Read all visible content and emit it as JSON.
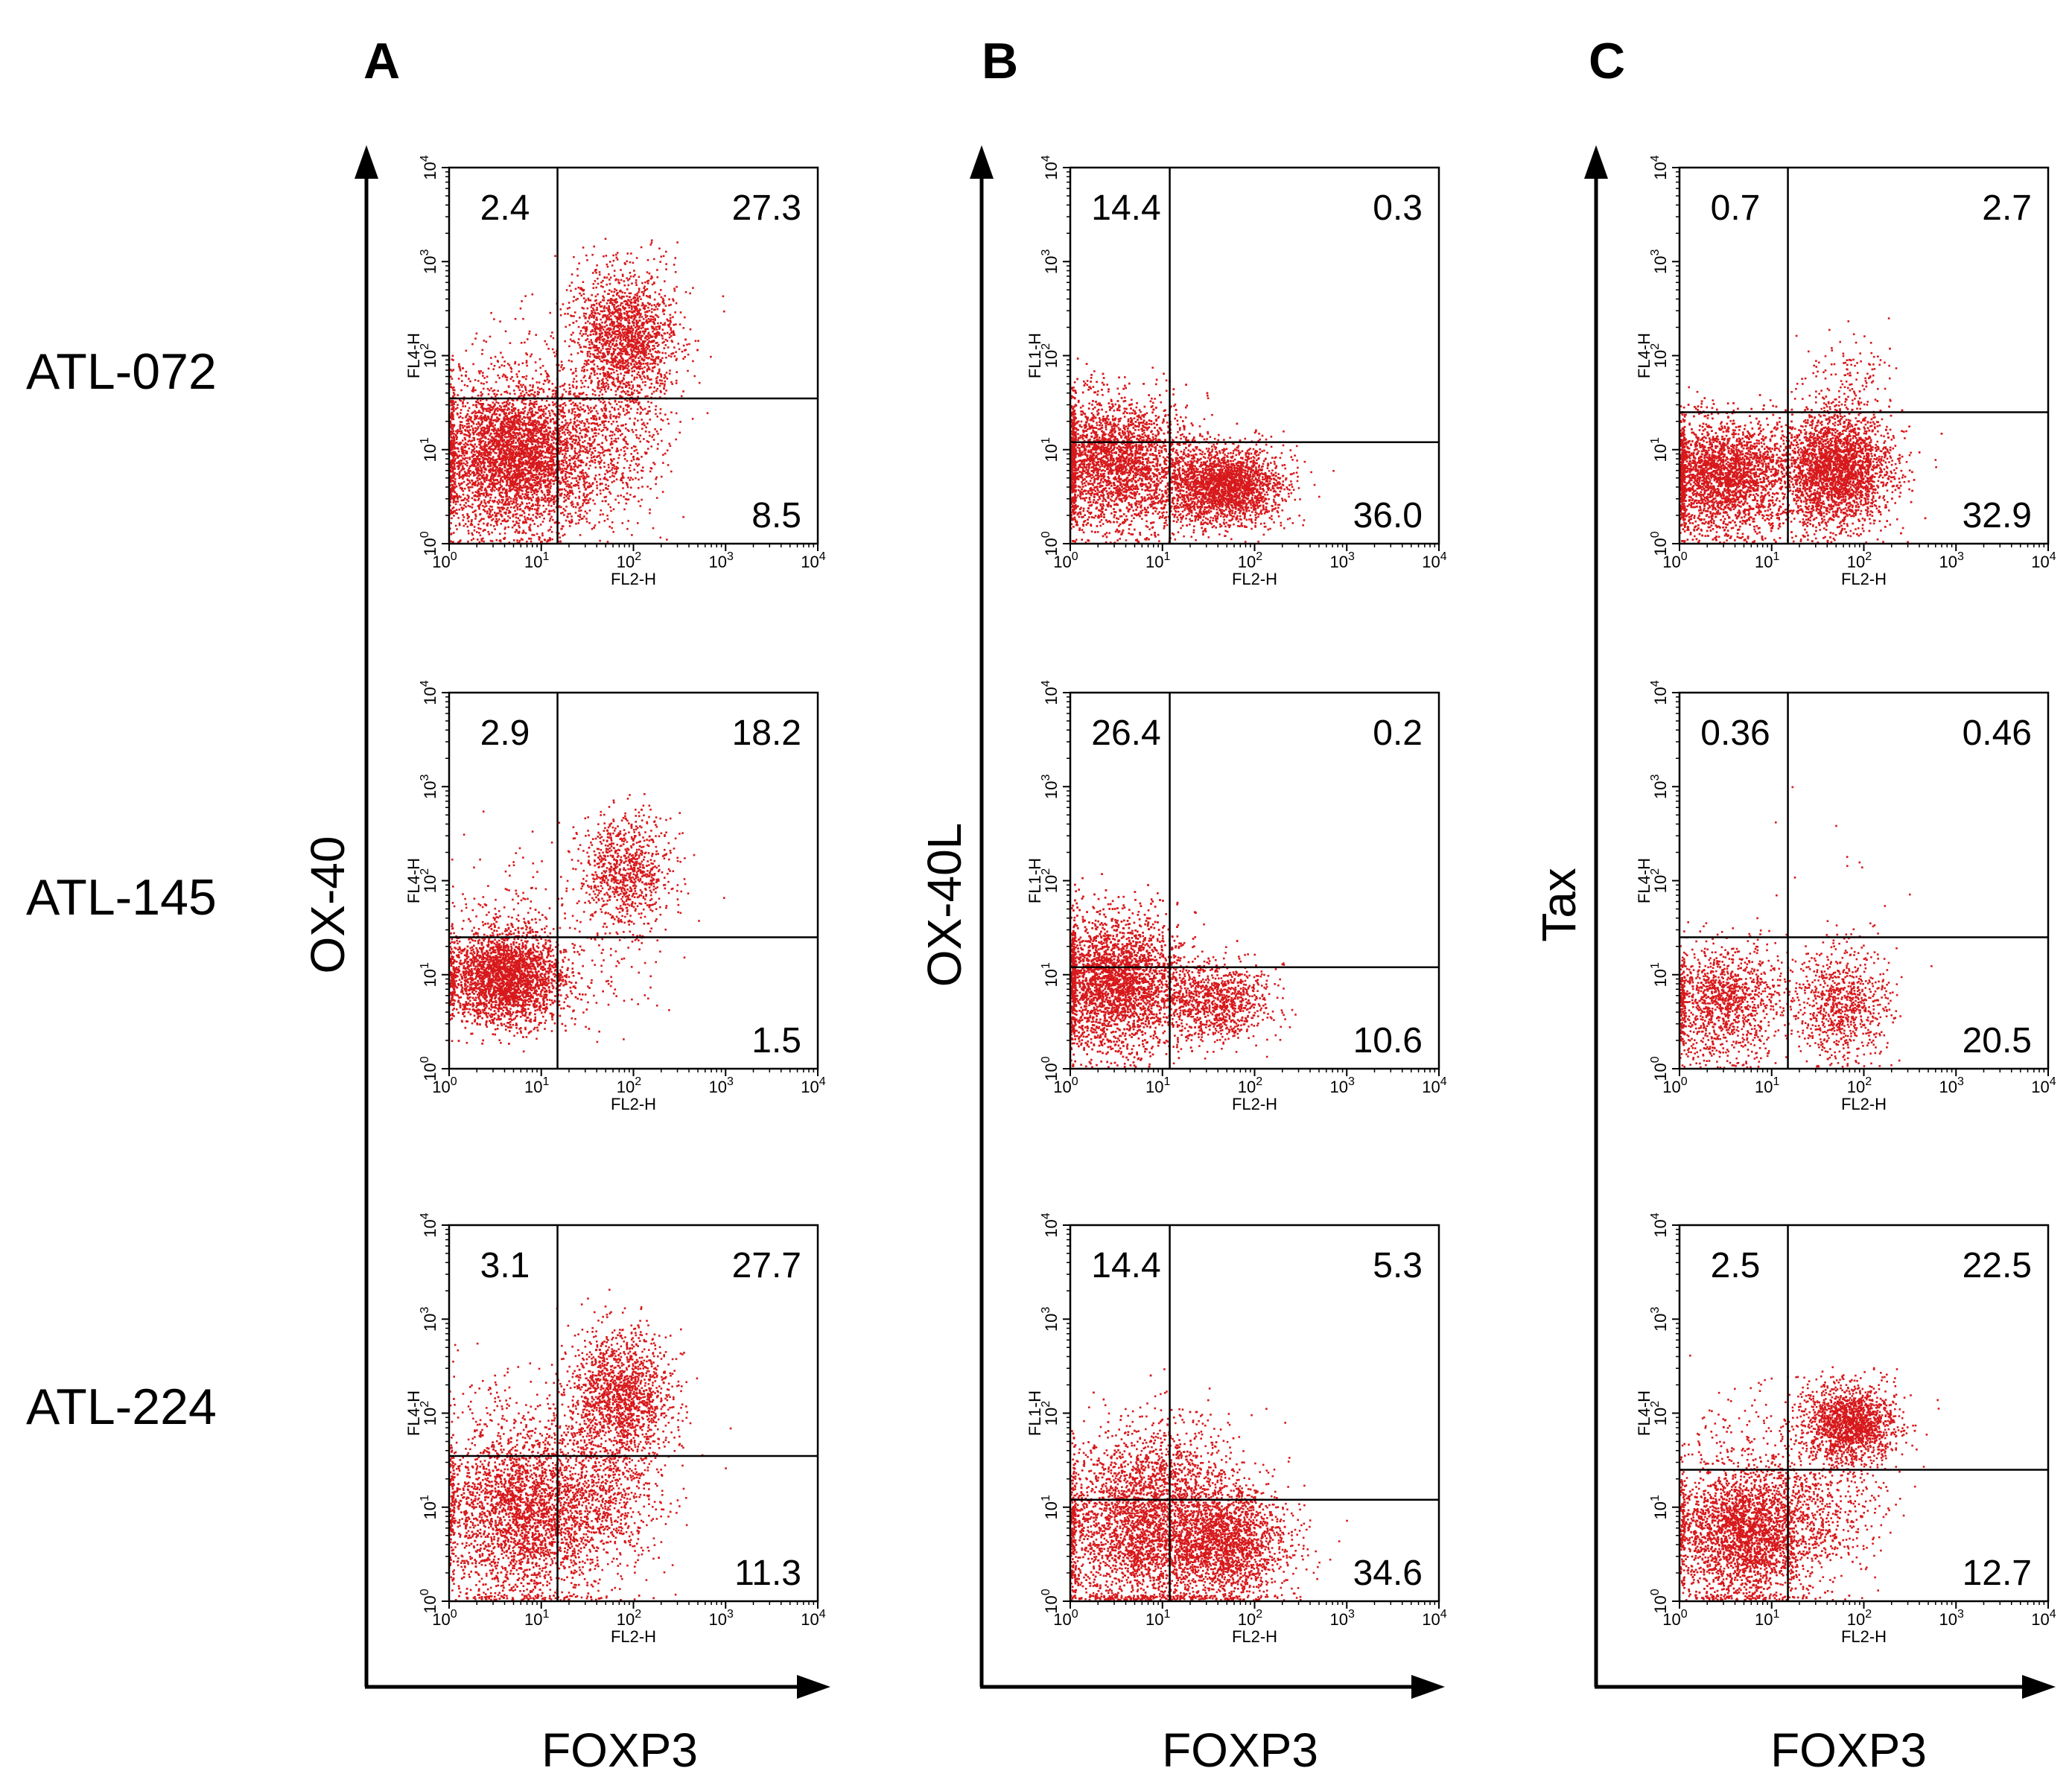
{
  "rows": [
    "ATL-072",
    "ATL-145",
    "ATL-224"
  ],
  "chart_data": [
    {
      "type": "scatter",
      "column_label": "A",
      "xlabel": "FOXP3",
      "ylabel": "OX-40",
      "panels": [
        {
          "sample": "ATL-072",
          "xaxis_label": "FL2-H",
          "yaxis_label": "FL4-H",
          "xlim": [
            1,
            10000
          ],
          "ylim": [
            1,
            10000
          ],
          "scale": "log",
          "gate_x": 15,
          "gate_y": 35,
          "quadrants": {
            "upper_left": "2.4",
            "upper_right": "27.3",
            "lower_right": "8.5"
          },
          "clusters": [
            {
              "cx": 5,
              "cy": 8,
              "sx": 0.45,
              "sy": 0.38,
              "n": 4200
            },
            {
              "cx": 80,
              "cy": 150,
              "sx": 0.28,
              "sy": 0.35,
              "n": 1800
            },
            {
              "cx": 50,
              "cy": 12,
              "sx": 0.35,
              "sy": 0.4,
              "n": 550
            },
            {
              "cx": 4,
              "cy": 60,
              "sx": 0.4,
              "sy": 0.4,
              "n": 120
            }
          ]
        },
        {
          "sample": "ATL-145",
          "xaxis_label": "FL2-H",
          "yaxis_label": "FL4-H",
          "xlim": [
            1,
            10000
          ],
          "ylim": [
            1,
            10000
          ],
          "scale": "log",
          "gate_x": 15,
          "gate_y": 25,
          "quadrants": {
            "upper_left": "2.9",
            "upper_right": "18.2",
            "lower_right": "1.5"
          },
          "clusters": [
            {
              "cx": 4,
              "cy": 9,
              "sx": 0.32,
              "sy": 0.25,
              "n": 4000
            },
            {
              "cx": 80,
              "cy": 120,
              "sx": 0.25,
              "sy": 0.3,
              "n": 900
            },
            {
              "cx": 5,
              "cy": 60,
              "sx": 0.4,
              "sy": 0.4,
              "n": 100
            },
            {
              "cx": 50,
              "cy": 10,
              "sx": 0.35,
              "sy": 0.3,
              "n": 70
            }
          ]
        },
        {
          "sample": "ATL-224",
          "xaxis_label": "FL2-H",
          "yaxis_label": "FL4-H",
          "xlim": [
            1,
            10000
          ],
          "ylim": [
            1,
            10000
          ],
          "scale": "log",
          "gate_x": 15,
          "gate_y": 35,
          "quadrants": {
            "upper_left": "3.1",
            "upper_right": "27.7",
            "lower_right": "11.3"
          },
          "clusters": [
            {
              "cx": 6,
              "cy": 8,
              "sx": 0.45,
              "sy": 0.45,
              "n": 3800
            },
            {
              "cx": 70,
              "cy": 140,
              "sx": 0.28,
              "sy": 0.35,
              "n": 1600
            },
            {
              "cx": 45,
              "cy": 12,
              "sx": 0.35,
              "sy": 0.4,
              "n": 700
            },
            {
              "cx": 4,
              "cy": 60,
              "sx": 0.4,
              "sy": 0.4,
              "n": 160
            }
          ]
        }
      ]
    },
    {
      "type": "scatter",
      "column_label": "B",
      "xlabel": "FOXP3",
      "ylabel": "OX-40L",
      "panels": [
        {
          "sample": "ATL-072",
          "xaxis_label": "FL2-H",
          "yaxis_label": "FL1-H",
          "xlim": [
            1,
            10000
          ],
          "ylim": [
            1,
            10000
          ],
          "scale": "log",
          "gate_x": 12,
          "gate_y": 12,
          "quadrants": {
            "upper_left": "14.4",
            "upper_right": "0.3",
            "lower_right": "36.0"
          },
          "clusters": [
            {
              "cx": 3,
              "cy": 7,
              "sx": 0.4,
              "sy": 0.35,
              "n": 4000
            },
            {
              "cx": 50,
              "cy": 4,
              "sx": 0.3,
              "sy": 0.2,
              "n": 2200
            },
            {
              "cx": 15,
              "cy": 4,
              "sx": 0.3,
              "sy": 0.25,
              "n": 300
            }
          ]
        },
        {
          "sample": "ATL-145",
          "xaxis_label": "FL2-H",
          "yaxis_label": "FL1-H",
          "xlim": [
            1,
            10000
          ],
          "ylim": [
            1,
            10000
          ],
          "scale": "log",
          "gate_x": 12,
          "gate_y": 12,
          "quadrants": {
            "upper_left": "26.4",
            "upper_right": "0.2",
            "lower_right": "10.6"
          },
          "clusters": [
            {
              "cx": 3,
              "cy": 8,
              "sx": 0.35,
              "sy": 0.35,
              "n": 5000
            },
            {
              "cx": 40,
              "cy": 5,
              "sx": 0.28,
              "sy": 0.2,
              "n": 900
            },
            {
              "cx": 12,
              "cy": 5,
              "sx": 0.3,
              "sy": 0.25,
              "n": 200
            }
          ]
        },
        {
          "sample": "ATL-224",
          "xaxis_label": "FL2-H",
          "yaxis_label": "FL1-H",
          "xlim": [
            1,
            10000
          ],
          "ylim": [
            1,
            10000
          ],
          "scale": "log",
          "gate_x": 12,
          "gate_y": 12,
          "quadrants": {
            "upper_left": "14.4",
            "upper_right": "5.3",
            "lower_right": "34.6"
          },
          "clusters": [
            {
              "cx": 5,
              "cy": 6,
              "sx": 0.45,
              "sy": 0.45,
              "n": 3500
            },
            {
              "cx": 45,
              "cy": 4,
              "sx": 0.35,
              "sy": 0.3,
              "n": 2000
            },
            {
              "cx": 15,
              "cy": 20,
              "sx": 0.4,
              "sy": 0.35,
              "n": 500
            }
          ]
        }
      ]
    },
    {
      "type": "scatter",
      "column_label": "C",
      "xlabel": "FOXP3",
      "ylabel": "Tax",
      "panels": [
        {
          "sample": "ATL-072",
          "xaxis_label": "FL2-H",
          "yaxis_label": "FL4-H",
          "xlim": [
            1,
            10000
          ],
          "ylim": [
            1,
            10000
          ],
          "scale": "log",
          "gate_x": 15,
          "gate_y": 25,
          "quadrants": {
            "upper_left": "0.7",
            "upper_right": "2.7",
            "lower_right": "32.9"
          },
          "clusters": [
            {
              "cx": 3,
              "cy": 5,
              "sx": 0.38,
              "sy": 0.3,
              "n": 4500
            },
            {
              "cx": 50,
              "cy": 6,
              "sx": 0.3,
              "sy": 0.3,
              "n": 3500
            },
            {
              "cx": 60,
              "cy": 60,
              "sx": 0.25,
              "sy": 0.25,
              "n": 120
            }
          ]
        },
        {
          "sample": "ATL-145",
          "xaxis_label": "FL2-H",
          "yaxis_label": "FL4-H",
          "xlim": [
            1,
            10000
          ],
          "ylim": [
            1,
            10000
          ],
          "scale": "log",
          "gate_x": 15,
          "gate_y": 25,
          "quadrants": {
            "upper_left": "0.36",
            "upper_right": "0.46",
            "lower_right": "20.5"
          },
          "clusters": [
            {
              "cx": 3,
              "cy": 5,
              "sx": 0.35,
              "sy": 0.3,
              "n": 1300
            },
            {
              "cx": 60,
              "cy": 5,
              "sx": 0.25,
              "sy": 0.3,
              "n": 800
            },
            {
              "cx": 40,
              "cy": 60,
              "sx": 0.5,
              "sy": 0.4,
              "n": 15
            }
          ]
        },
        {
          "sample": "ATL-224",
          "xaxis_label": "FL2-H",
          "yaxis_label": "FL4-H",
          "xlim": [
            1,
            10000
          ],
          "ylim": [
            1,
            10000
          ],
          "scale": "log",
          "gate_x": 15,
          "gate_y": 25,
          "quadrants": {
            "upper_left": "2.5",
            "upper_right": "22.5",
            "lower_right": "12.7"
          },
          "clusters": [
            {
              "cx": 5,
              "cy": 5,
              "sx": 0.4,
              "sy": 0.35,
              "n": 4000
            },
            {
              "cx": 70,
              "cy": 75,
              "sx": 0.25,
              "sy": 0.2,
              "n": 1600
            },
            {
              "cx": 30,
              "cy": 10,
              "sx": 0.4,
              "sy": 0.35,
              "n": 500
            },
            {
              "cx": 5,
              "cy": 40,
              "sx": 0.4,
              "sy": 0.35,
              "n": 150
            }
          ]
        }
      ]
    }
  ]
}
